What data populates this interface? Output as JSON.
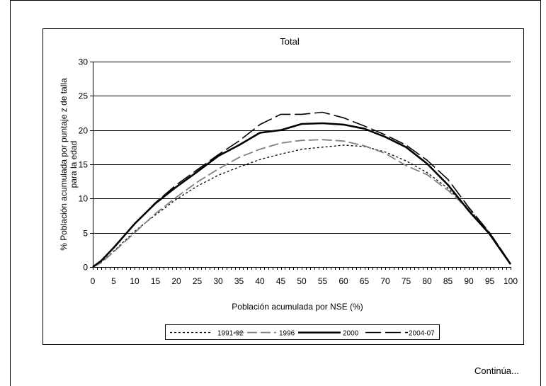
{
  "chart_data": {
    "type": "line",
    "title": "Total",
    "xlabel": "Población acumulada por NSE (%)",
    "ylabel": [
      "% Población acumulada por puntaje z de talla",
      "para la edad"
    ],
    "xlim": [
      0,
      100
    ],
    "ylim": [
      0,
      30
    ],
    "xticks": [
      0,
      5,
      10,
      15,
      20,
      25,
      30,
      35,
      40,
      45,
      50,
      55,
      60,
      65,
      70,
      75,
      80,
      85,
      90,
      95,
      100
    ],
    "yticks": [
      0,
      5,
      10,
      15,
      20,
      25,
      30
    ],
    "grid_y": true,
    "legend_position": "bottom",
    "series": [
      {
        "name": "1991-92",
        "style": "dotted",
        "color": "#000000",
        "width": 1.3,
        "points": [
          [
            0,
            0
          ],
          [
            2,
            0.7
          ],
          [
            5,
            2.3
          ],
          [
            10,
            5.2
          ],
          [
            15,
            7.6
          ],
          [
            20,
            9.9
          ],
          [
            25,
            11.8
          ],
          [
            30,
            13.4
          ],
          [
            35,
            14.6
          ],
          [
            40,
            15.7
          ],
          [
            45,
            16.5
          ],
          [
            50,
            17.2
          ],
          [
            55,
            17.5
          ],
          [
            60,
            17.8
          ],
          [
            65,
            17.6
          ],
          [
            70,
            16.8
          ],
          [
            75,
            15.5
          ],
          [
            80,
            13.8
          ],
          [
            85,
            11.5
          ],
          [
            90,
            8.5
          ],
          [
            95,
            5.0
          ],
          [
            100,
            0.5
          ]
        ]
      },
      {
        "name": "1996",
        "style": "dashed",
        "color": "#808080",
        "width": 1.8,
        "points": [
          [
            0,
            0
          ],
          [
            2,
            0.6
          ],
          [
            5,
            2.2
          ],
          [
            10,
            5.0
          ],
          [
            15,
            7.8
          ],
          [
            20,
            10.2
          ],
          [
            25,
            12.4
          ],
          [
            30,
            14.3
          ],
          [
            35,
            16.0
          ],
          [
            40,
            17.2
          ],
          [
            45,
            18.1
          ],
          [
            50,
            18.5
          ],
          [
            55,
            18.6
          ],
          [
            60,
            18.4
          ],
          [
            65,
            17.7
          ],
          [
            70,
            16.6
          ],
          [
            75,
            14.8
          ],
          [
            80,
            13.5
          ],
          [
            85,
            11.2
          ],
          [
            90,
            8.4
          ],
          [
            95,
            5.0
          ],
          [
            100,
            0.5
          ]
        ]
      },
      {
        "name": "2000",
        "style": "solid",
        "color": "#000000",
        "width": 2.6,
        "points": [
          [
            0,
            0
          ],
          [
            2,
            0.9
          ],
          [
            5,
            2.8
          ],
          [
            10,
            6.3
          ],
          [
            15,
            9.3
          ],
          [
            20,
            11.7
          ],
          [
            25,
            13.9
          ],
          [
            30,
            16.2
          ],
          [
            35,
            17.8
          ],
          [
            40,
            19.6
          ],
          [
            45,
            20.0
          ],
          [
            50,
            20.9
          ],
          [
            55,
            21.0
          ],
          [
            60,
            20.8
          ],
          [
            65,
            20.2
          ],
          [
            70,
            19.0
          ],
          [
            75,
            17.5
          ],
          [
            80,
            15.1
          ],
          [
            85,
            12.0
          ],
          [
            90,
            8.2
          ],
          [
            95,
            4.8
          ],
          [
            100,
            0.4
          ]
        ]
      },
      {
        "name": "2004-07",
        "style": "longdash",
        "color": "#000000",
        "width": 1.6,
        "points": [
          [
            0,
            0
          ],
          [
            2,
            0.9
          ],
          [
            5,
            2.9
          ],
          [
            10,
            6.3
          ],
          [
            15,
            9.4
          ],
          [
            20,
            12.0
          ],
          [
            25,
            14.2
          ],
          [
            30,
            16.4
          ],
          [
            35,
            18.4
          ],
          [
            40,
            20.8
          ],
          [
            45,
            22.3
          ],
          [
            50,
            22.3
          ],
          [
            55,
            22.6
          ],
          [
            60,
            21.8
          ],
          [
            65,
            20.6
          ],
          [
            70,
            19.3
          ],
          [
            75,
            17.8
          ],
          [
            80,
            15.6
          ],
          [
            85,
            12.8
          ],
          [
            90,
            8.7
          ],
          [
            95,
            5.0
          ],
          [
            100,
            0.5
          ]
        ]
      }
    ]
  },
  "footer": {
    "continua": "Continúa..."
  }
}
